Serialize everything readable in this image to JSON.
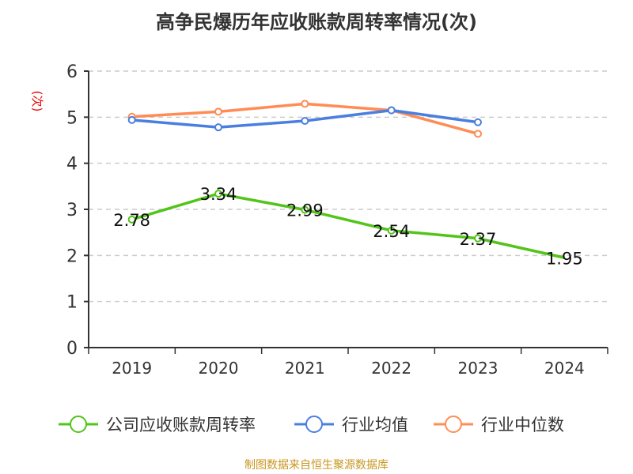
{
  "chart_data": {
    "type": "line",
    "title": "高争民爆历年应收账款周转率情况(次)",
    "ylabel": "(次)",
    "xlabel": "",
    "categories": [
      "2019",
      "2020",
      "2021",
      "2022",
      "2023",
      "2024"
    ],
    "ylim": [
      0,
      6
    ],
    "yticks": [
      "0",
      "1",
      "2",
      "3",
      "4",
      "5",
      "6"
    ],
    "grid": true,
    "legend_position": "bottom",
    "series": [
      {
        "name": "公司应收账款周转率",
        "color": "#52c41a",
        "values": [
          2.78,
          3.34,
          2.99,
          2.54,
          2.37,
          1.95
        ],
        "labels": [
          "2.78",
          "3.34",
          "2.99",
          "2.54",
          "2.37",
          "1.95"
        ],
        "markers": [
          true,
          true,
          true,
          true,
          true,
          false
        ]
      },
      {
        "name": "行业均值",
        "color": "#4a7fe0",
        "values": [
          4.94,
          4.78,
          4.92,
          5.15,
          4.89,
          null
        ]
      },
      {
        "name": "行业中位数",
        "color": "#ff8c55",
        "values": [
          5.01,
          5.12,
          5.29,
          5.15,
          4.64,
          null
        ]
      }
    ],
    "source": "制图数据来自恒生聚源数据库"
  }
}
